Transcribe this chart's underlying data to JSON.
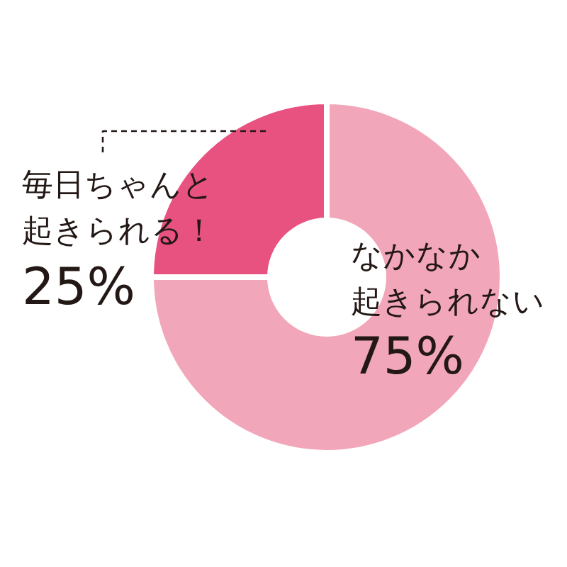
{
  "chart_data": {
    "type": "donut",
    "categories": [
      "なかなか起きられない",
      "毎日ちゃんと起きられる！"
    ],
    "values": [
      75,
      25
    ],
    "colors": [
      "#f2a6ba",
      "#e85280"
    ],
    "value_labels": [
      "75%",
      "25%"
    ]
  }
}
